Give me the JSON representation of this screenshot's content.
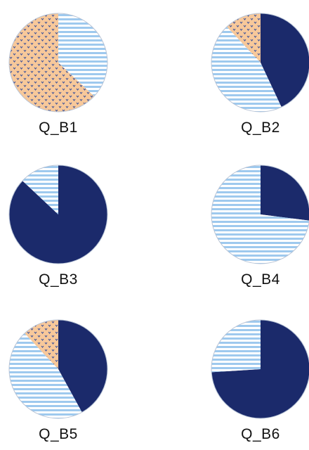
{
  "chart_data": [
    {
      "type": "pie",
      "title": "Q_B1",
      "slices": [
        {
          "category": "dark",
          "value": 0
        },
        {
          "category": "striped",
          "value": 37
        },
        {
          "category": "dotted",
          "value": 63
        }
      ]
    },
    {
      "type": "pie",
      "title": "Q_B2",
      "slices": [
        {
          "category": "dark",
          "value": 43
        },
        {
          "category": "striped",
          "value": 45
        },
        {
          "category": "dotted",
          "value": 12
        }
      ]
    },
    {
      "type": "pie",
      "title": "Q_B3",
      "slices": [
        {
          "category": "dark",
          "value": 87
        },
        {
          "category": "striped",
          "value": 13
        },
        {
          "category": "dotted",
          "value": 0
        }
      ]
    },
    {
      "type": "pie",
      "title": "Q_B4",
      "slices": [
        {
          "category": "dark",
          "value": 27
        },
        {
          "category": "striped",
          "value": 73
        },
        {
          "category": "dotted",
          "value": 0
        }
      ]
    },
    {
      "type": "pie",
      "title": "Q_B5",
      "slices": [
        {
          "category": "dark",
          "value": 42
        },
        {
          "category": "striped",
          "value": 46
        },
        {
          "category": "dotted",
          "value": 12
        }
      ]
    },
    {
      "type": "pie",
      "title": "Q_B6",
      "slices": [
        {
          "category": "dark",
          "value": 74
        },
        {
          "category": "striped",
          "value": 26
        },
        {
          "category": "dotted",
          "value": 0
        }
      ]
    }
  ],
  "colors": {
    "dark": "#1b2a6b",
    "striped_line": "#9ec9ee",
    "striped_bg": "#ffffff",
    "dotted_bg": "#f7c89a",
    "dotted_mark": "#2f4a9a",
    "outline": "#b8c4d6"
  }
}
